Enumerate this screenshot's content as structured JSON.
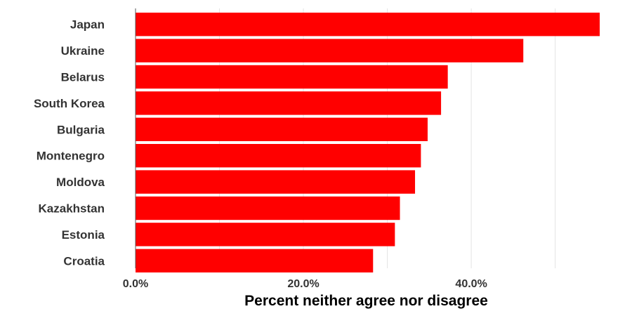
{
  "chart_data": {
    "type": "bar",
    "orientation": "horizontal",
    "categories": [
      "Japan",
      "Ukraine",
      "Belarus",
      "South Korea",
      "Bulgaria",
      "Montenegro",
      "Moldova",
      "Kazakhstan",
      "Estonia",
      "Croatia"
    ],
    "values": [
      55.3,
      46.2,
      37.2,
      36.4,
      34.8,
      34.0,
      33.3,
      31.5,
      30.9,
      28.3
    ],
    "xlabel": "Percent neither agree nor disagree",
    "ylabel": "",
    "xlim": [
      0,
      55.3
    ],
    "xticks": [
      0,
      20,
      40
    ],
    "xtick_labels": [
      "0.0%",
      "20.0%",
      "40.0%"
    ],
    "gridlines": [
      0,
      10,
      20,
      30,
      40,
      50
    ],
    "grid": true,
    "bar_color": "#ff0000"
  }
}
